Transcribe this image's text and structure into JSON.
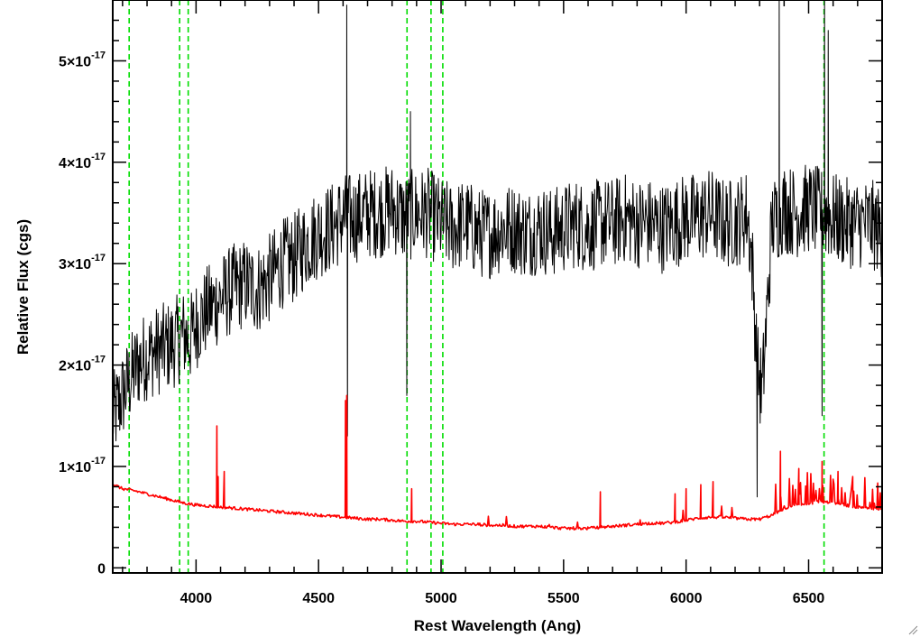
{
  "chart_data": {
    "type": "line",
    "title": "",
    "xlabel": "Rest Wavelength (Ang)",
    "ylabel": "Relative Flux (cgs)",
    "xlim": [
      3660,
      6800
    ],
    "ylim": [
      -5e-19,
      5.6e-17
    ],
    "x_ticks": [
      {
        "value": 4000,
        "label": "4000"
      },
      {
        "value": 4500,
        "label": "4500"
      },
      {
        "value": 5000,
        "label": "5000"
      },
      {
        "value": 5500,
        "label": "5500"
      },
      {
        "value": 6000,
        "label": "6000"
      },
      {
        "value": 6500,
        "label": "6500"
      }
    ],
    "y_ticks": [
      {
        "value": 0,
        "mantissa": "0",
        "exponent": ""
      },
      {
        "value": 1e-17,
        "mantissa": "1×10",
        "exponent": "-17"
      },
      {
        "value": 2e-17,
        "mantissa": "2×10",
        "exponent": "-17"
      },
      {
        "value": 3e-17,
        "mantissa": "3×10",
        "exponent": "-17"
      },
      {
        "value": 4e-17,
        "mantissa": "4×10",
        "exponent": "-17"
      },
      {
        "value": 5e-17,
        "mantissa": "5×10",
        "exponent": "-17"
      }
    ],
    "grid": false,
    "series": [
      {
        "color": "#000000",
        "style": "noisy-spectrum",
        "x": [
          3665,
          3700,
          3730,
          3760,
          3800,
          3850,
          3900,
          3950,
          3975,
          4000,
          4050,
          4100,
          4150,
          4200,
          4250,
          4300,
          4350,
          4400,
          4450,
          4500,
          4550,
          4600,
          4650,
          4700,
          4750,
          4800,
          4850,
          4900,
          4950,
          5000,
          5050,
          5100,
          5150,
          5200,
          5250,
          5300,
          5350,
          5400,
          5450,
          5500,
          5550,
          5600,
          5650,
          5700,
          5750,
          5800,
          5850,
          5900,
          5950,
          6000,
          6050,
          6100,
          6150,
          6200,
          6250,
          6270,
          6290,
          6310,
          6330,
          6350,
          6400,
          6450,
          6500,
          6550,
          6600,
          6650,
          6700,
          6750,
          6800
        ],
        "y": [
          1.5e-17,
          1.7e-17,
          1.85e-17,
          2e-17,
          2.1e-17,
          2.15e-17,
          2.2e-17,
          2.3e-17,
          2.25e-17,
          2.4e-17,
          2.55e-17,
          2.65e-17,
          2.75e-17,
          2.8e-17,
          2.75e-17,
          2.85e-17,
          3e-17,
          3.05e-17,
          3.2e-17,
          3.3e-17,
          3.35e-17,
          3.45e-17,
          3.45e-17,
          3.5e-17,
          3.5e-17,
          3.55e-17,
          3.45e-17,
          3.5e-17,
          3.5e-17,
          3.4e-17,
          3.35e-17,
          3.4e-17,
          3.3e-17,
          3.3e-17,
          3.35e-17,
          3.35e-17,
          3.3e-17,
          3.35e-17,
          3.3e-17,
          3.35e-17,
          3.4e-17,
          3.35e-17,
          3.4e-17,
          3.4e-17,
          3.45e-17,
          3.4e-17,
          3.4e-17,
          3.35e-17,
          3.4e-17,
          3.45e-17,
          3.45e-17,
          3.5e-17,
          3.4e-17,
          3.4e-17,
          3.5e-17,
          3e-17,
          2e-17,
          1.7e-17,
          2.5e-17,
          3.4e-17,
          3.55e-17,
          3.5e-17,
          3.55e-17,
          3.5e-17,
          3.45e-17,
          3.4e-17,
          3.4e-17,
          3.4e-17,
          3.3e-17
        ],
        "spikes": [
          {
            "x": 4615,
            "y": 5.55e-17
          },
          {
            "x": 4618,
            "y": 1.3e-17
          },
          {
            "x": 4860,
            "y": 1.7e-17
          },
          {
            "x": 4875,
            "y": 4.5e-17
          },
          {
            "x": 6290,
            "y": 7e-18
          },
          {
            "x": 6380,
            "y": 5.6e-17
          },
          {
            "x": 6555,
            "y": 1.5e-17
          },
          {
            "x": 6565,
            "y": 5.6e-17
          },
          {
            "x": 6580,
            "y": 5.3e-17
          }
        ]
      },
      {
        "color": "#ff0000",
        "style": "model-spectrum",
        "x": [
          3665,
          3700,
          3750,
          3800,
          3850,
          3900,
          3950,
          4000,
          4050,
          4100,
          4150,
          4200,
          4250,
          4300,
          4350,
          4400,
          4450,
          4500,
          4550,
          4600,
          4650,
          4700,
          4750,
          4800,
          4850,
          4900,
          4950,
          5000,
          5050,
          5100,
          5150,
          5200,
          5250,
          5300,
          5350,
          5400,
          5450,
          5500,
          5550,
          5600,
          5650,
          5700,
          5750,
          5800,
          5850,
          5900,
          5950,
          6000,
          6050,
          6100,
          6150,
          6200,
          6250,
          6300,
          6350,
          6400,
          6450,
          6500,
          6550,
          6600,
          6650,
          6700,
          6750,
          6800
        ],
        "y": [
          8.2e-18,
          7.8e-18,
          7.6e-18,
          7.3e-18,
          7e-18,
          6.7e-18,
          6.4e-18,
          6.2e-18,
          6.1e-18,
          6e-18,
          5.9e-18,
          5.8e-18,
          5.7e-18,
          5.6e-18,
          5.5e-18,
          5.4e-18,
          5.3e-18,
          5.2e-18,
          5.1e-18,
          5e-18,
          4.9e-18,
          4.8e-18,
          4.8e-18,
          4.7e-18,
          4.6e-18,
          4.6e-18,
          4.5e-18,
          4.4e-18,
          4.3e-18,
          4.3e-18,
          4.3e-18,
          4.2e-18,
          4.2e-18,
          4.1e-18,
          4.1e-18,
          4.1e-18,
          4e-18,
          3.9e-18,
          3.9e-18,
          3.9e-18,
          4e-18,
          4.1e-18,
          4.2e-18,
          4.3e-18,
          4.4e-18,
          4.4e-18,
          4.5e-18,
          4.7e-18,
          4.9e-18,
          5e-18,
          5e-18,
          4.9e-18,
          4.8e-18,
          4.8e-18,
          5.2e-18,
          5.8e-18,
          6.2e-18,
          6.4e-18,
          6.5e-18,
          6.4e-18,
          6.2e-18,
          6e-18,
          5.9e-18,
          5.8e-18
        ],
        "spikes": [
          {
            "x": 4085,
            "y": 1.4e-17
          },
          {
            "x": 4090,
            "y": 9e-18
          },
          {
            "x": 4115,
            "y": 9.5e-18
          },
          {
            "x": 4610,
            "y": 1.65e-17
          },
          {
            "x": 4615,
            "y": 1.7e-17
          },
          {
            "x": 4880,
            "y": 7.8e-18
          },
          {
            "x": 5650,
            "y": 7.5e-18
          },
          {
            "x": 5955,
            "y": 7.3e-18
          },
          {
            "x": 6000,
            "y": 7.8e-18
          },
          {
            "x": 6060,
            "y": 8.2e-18
          },
          {
            "x": 6110,
            "y": 8.5e-18
          },
          {
            "x": 6385,
            "y": 1.15e-17
          },
          {
            "x": 6460,
            "y": 9.8e-18
          },
          {
            "x": 6555,
            "y": 1.05e-17
          },
          {
            "x": 6620,
            "y": 9.5e-18
          },
          {
            "x": 6680,
            "y": 9e-18
          }
        ]
      }
    ],
    "vertical_lines": {
      "color": "#00dd00",
      "style": "dashed",
      "x": [
        3727,
        3933,
        3968,
        4861,
        4959,
        5007,
        6563
      ]
    }
  }
}
